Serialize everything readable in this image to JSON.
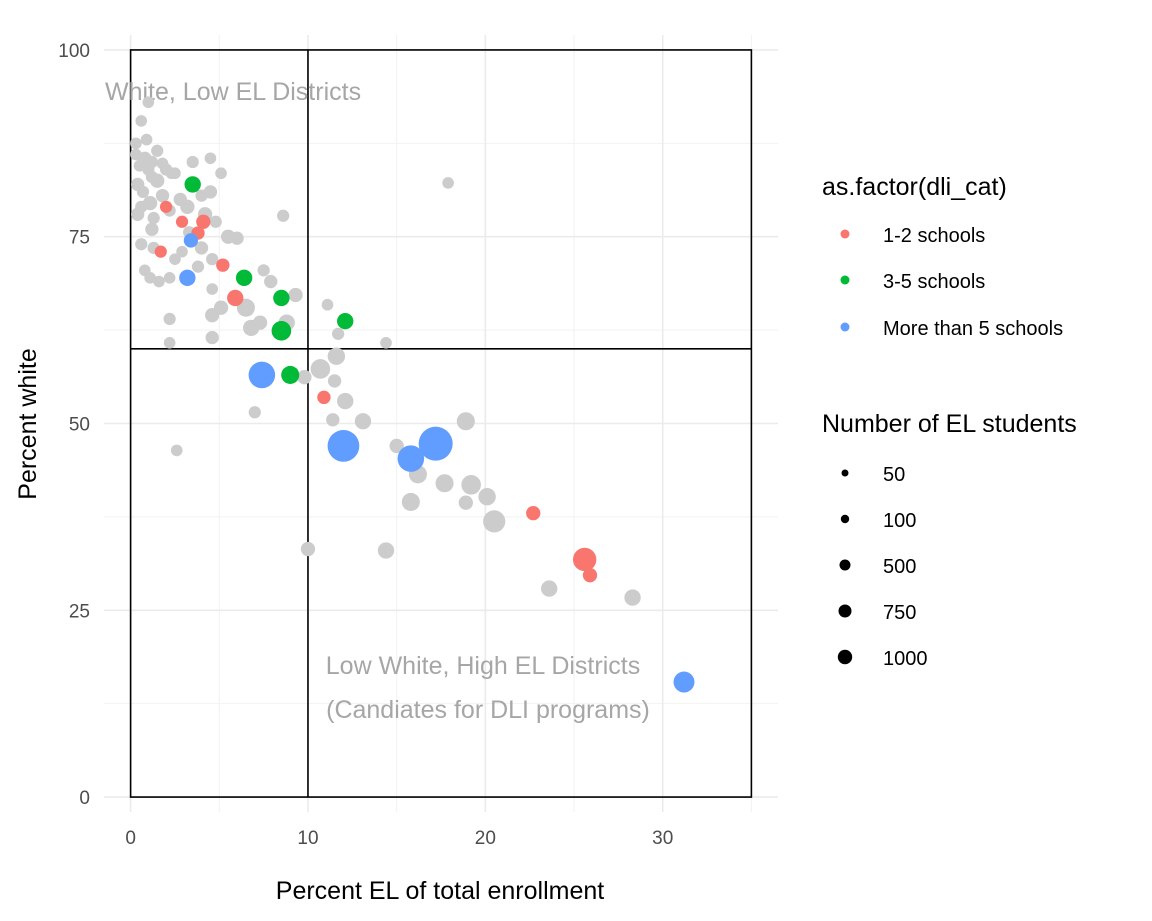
{
  "chart_data": {
    "type": "scatter",
    "xlabel": "Percent EL of total enrollment",
    "ylabel": "Percent white",
    "xlim": [
      -1.5,
      36.5
    ],
    "ylim": [
      -2,
      102
    ],
    "x_ticks": [
      0,
      10,
      20,
      30
    ],
    "y_ticks": [
      0,
      25,
      50,
      75,
      100
    ],
    "grid": true,
    "colors": {
      "1-2 schools": "#F8766D",
      "3-5 schools": "#00BA38",
      "More than 5 schools": "#619CFF",
      "none": "#CCCCCC"
    },
    "reference_lines": {
      "vertical_x": 10,
      "horizontal_y": 60,
      "box": [
        0,
        35,
        0,
        100
      ]
    },
    "annotations": [
      {
        "text": "White, Low EL Districts",
        "x": 0,
        "y": 94.5
      },
      {
        "text": "Low White, High EL Districts",
        "x": 20,
        "y": 17.5
      },
      {
        "text": "(Candiates for DLI programs)",
        "x": 20,
        "y": 11.5
      }
    ],
    "legend_color": {
      "title": "as.factor(dli_cat)",
      "entries": [
        "1-2 schools",
        "3-5 schools",
        "More than 5 schools"
      ]
    },
    "legend_size": {
      "title": "Number of EL students",
      "entries": [
        {
          "label": "50",
          "value": 50
        },
        {
          "label": "100",
          "value": 100
        },
        {
          "label": "500",
          "value": 500
        },
        {
          "label": "750",
          "value": 750
        },
        {
          "label": "1000",
          "value": 1000
        }
      ]
    },
    "series": [
      {
        "name": "none",
        "points": [
          [
            0.3,
            86
          ],
          [
            0.5,
            84.5
          ],
          [
            0.8,
            85.5
          ],
          [
            1,
            84
          ],
          [
            1.2,
            83
          ],
          [
            0.4,
            82
          ],
          [
            0.7,
            81
          ],
          [
            1.5,
            82.5
          ],
          [
            2,
            84
          ],
          [
            2.3,
            83.5
          ],
          [
            1.8,
            80.5
          ],
          [
            1.1,
            79.5
          ],
          [
            0.6,
            79
          ],
          [
            0.4,
            78
          ],
          [
            1.3,
            77.5
          ],
          [
            2.2,
            78.5
          ],
          [
            2.8,
            80
          ],
          [
            3.2,
            79
          ],
          [
            4,
            80.5
          ],
          [
            4.5,
            81
          ],
          [
            4.2,
            78
          ],
          [
            4.8,
            77
          ],
          [
            5.5,
            75
          ],
          [
            6,
            74.8
          ],
          [
            0.3,
            87.5
          ],
          [
            0.6,
            90.5
          ],
          [
            1,
            93
          ],
          [
            1.5,
            86.5
          ],
          [
            1.2,
            85
          ],
          [
            3.5,
            85
          ],
          [
            4.5,
            85.5
          ],
          [
            5.1,
            83.5
          ],
          [
            1.2,
            76
          ],
          [
            0.6,
            74
          ],
          [
            1.3,
            73.5
          ],
          [
            0.8,
            70.5
          ],
          [
            1.1,
            69.5
          ],
          [
            1.6,
            69
          ],
          [
            2.5,
            72
          ],
          [
            2.9,
            73
          ],
          [
            4,
            73.5
          ],
          [
            3.8,
            71
          ],
          [
            4.6,
            72
          ],
          [
            2.2,
            69.5
          ],
          [
            4.6,
            68
          ],
          [
            7.5,
            70.5
          ],
          [
            7.9,
            69
          ],
          [
            9.3,
            67.2
          ],
          [
            6.5,
            65.5
          ],
          [
            5.1,
            65.5
          ],
          [
            4.6,
            64.5
          ],
          [
            2.2,
            64
          ],
          [
            7.3,
            63.5
          ],
          [
            8.8,
            63.5
          ],
          [
            2.2,
            60.8
          ],
          [
            4.6,
            61.5
          ],
          [
            6.8,
            62.8
          ],
          [
            11.6,
            59
          ],
          [
            10.7,
            57.3
          ],
          [
            9.8,
            56.2
          ],
          [
            11.5,
            55.7
          ],
          [
            12.1,
            53
          ],
          [
            13.1,
            50.3
          ],
          [
            11.4,
            50.5
          ],
          [
            7,
            51.5
          ],
          [
            15,
            47
          ],
          [
            18.9,
            50.3
          ],
          [
            16.2,
            43.2
          ],
          [
            17.7,
            42
          ],
          [
            19.2,
            41.8
          ],
          [
            20.1,
            40.2
          ],
          [
            18.9,
            39.4
          ],
          [
            15.8,
            39.5
          ],
          [
            20.5,
            36.9
          ],
          [
            10,
            33.2
          ],
          [
            14.4,
            33
          ],
          [
            23.6,
            27.9
          ],
          [
            28.3,
            26.7
          ],
          [
            2.6,
            46.4
          ],
          [
            8.6,
            77.8
          ],
          [
            11.1,
            65.9
          ],
          [
            11.7,
            62
          ],
          [
            14.4,
            60.8
          ],
          [
            17.9,
            82.2
          ],
          [
            1.8,
            84.8
          ],
          [
            0.9,
            88
          ],
          [
            2.5,
            83.5
          ],
          [
            3.3,
            75.6
          ]
        ],
        "sizes": [
          50,
          50,
          80,
          60,
          60,
          80,
          60,
          100,
          60,
          50,
          80,
          100,
          60,
          80,
          60,
          60,
          80,
          100,
          60,
          80,
          100,
          60,
          100,
          80,
          50,
          50,
          50,
          60,
          60,
          60,
          50,
          50,
          80,
          60,
          60,
          50,
          50,
          50,
          50,
          50,
          80,
          60,
          60,
          50,
          50,
          60,
          80,
          100,
          200,
          100,
          100,
          60,
          100,
          150,
          50,
          80,
          150,
          180,
          250,
          100,
          80,
          150,
          150,
          80,
          60,
          100,
          200,
          200,
          200,
          250,
          180,
          100,
          200,
          350,
          100,
          150,
          150,
          150,
          50,
          60,
          50,
          60,
          50,
          50,
          50,
          50,
          50,
          60
        ]
      },
      {
        "name": "1-2 schools",
        "points": [
          [
            2,
            79
          ],
          [
            2.9,
            77
          ],
          [
            4.1,
            77
          ],
          [
            3.8,
            75.5
          ],
          [
            1.7,
            73
          ],
          [
            5.2,
            71.2
          ],
          [
            5.9,
            66.8
          ],
          [
            10.9,
            53.5
          ],
          [
            22.7,
            38
          ],
          [
            25.6,
            31.8
          ],
          [
            25.9,
            29.7
          ]
        ],
        "sizes": [
          60,
          60,
          100,
          80,
          60,
          80,
          150,
          80,
          100,
          400,
          100
        ]
      },
      {
        "name": "3-5 schools",
        "points": [
          [
            3.5,
            82
          ],
          [
            6.4,
            69.5
          ],
          [
            8.5,
            66.8
          ],
          [
            12.1,
            63.7
          ],
          [
            8.5,
            62.4
          ],
          [
            9,
            56.5
          ]
        ],
        "sizes": [
          150,
          150,
          150,
          150,
          250,
          200
        ]
      },
      {
        "name": "More than 5 schools",
        "points": [
          [
            3.4,
            74.5
          ],
          [
            3.2,
            69.5
          ],
          [
            7.4,
            56.5
          ],
          [
            12,
            47
          ],
          [
            15.8,
            45.3
          ],
          [
            17.2,
            47.3
          ],
          [
            31.2,
            15.4
          ]
        ],
        "sizes": [
          100,
          150,
          550,
          850,
          550,
          1000,
          300
        ]
      }
    ]
  }
}
